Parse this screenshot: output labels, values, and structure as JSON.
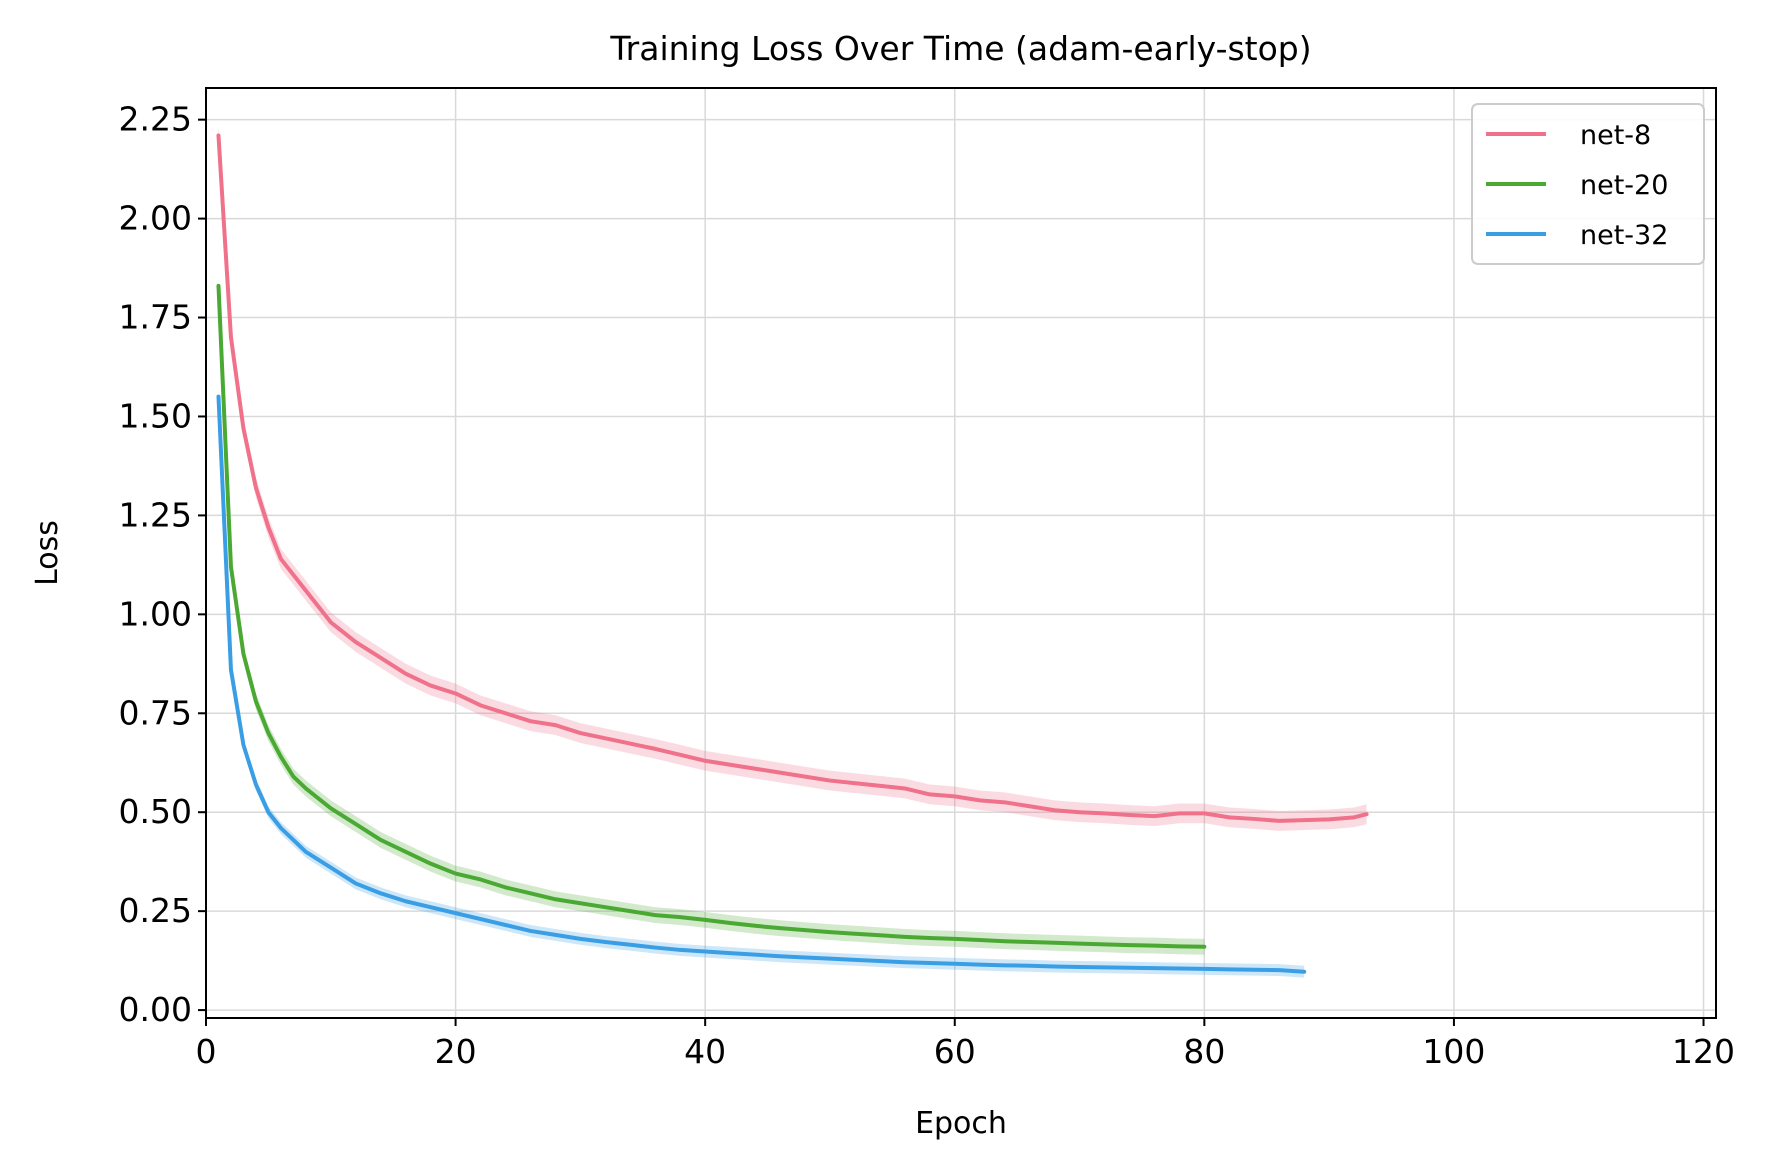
{
  "chart_data": {
    "type": "line",
    "title": "Training Loss Over Time (adam-early-stop)",
    "xlabel": "Epoch",
    "ylabel": "Loss",
    "xlim": [
      0,
      121
    ],
    "ylim": [
      -0.02,
      2.33
    ],
    "xticks": [
      0,
      20,
      40,
      60,
      80,
      100,
      120
    ],
    "yticks": [
      0.0,
      0.25,
      0.5,
      0.75,
      1.0,
      1.25,
      1.5,
      1.75,
      2.0,
      2.25
    ],
    "xtick_labels": [
      "0",
      "20",
      "40",
      "60",
      "80",
      "100",
      "120"
    ],
    "ytick_labels": [
      "0.00",
      "0.25",
      "0.50",
      "0.75",
      "1.00",
      "1.25",
      "1.50",
      "1.75",
      "2.00",
      "2.25"
    ],
    "grid": true,
    "legend_position": "top-right",
    "series": [
      {
        "name": "net-8",
        "color": "#f0718a",
        "x": [
          1,
          2,
          3,
          4,
          5,
          6,
          8,
          10,
          12,
          14,
          16,
          18,
          20,
          22,
          24,
          26,
          28,
          30,
          33,
          36,
          38,
          40,
          42,
          45,
          48,
          50,
          53,
          56,
          58,
          60,
          62,
          64,
          66,
          68,
          70,
          72,
          74,
          76,
          78,
          80,
          82,
          84,
          86,
          88,
          90,
          92,
          93
        ],
        "y": [
          2.21,
          1.7,
          1.47,
          1.32,
          1.22,
          1.14,
          1.06,
          0.98,
          0.93,
          0.89,
          0.85,
          0.82,
          0.8,
          0.77,
          0.75,
          0.73,
          0.72,
          0.7,
          0.68,
          0.66,
          0.645,
          0.63,
          0.62,
          0.605,
          0.59,
          0.58,
          0.57,
          0.56,
          0.545,
          0.54,
          0.53,
          0.525,
          0.515,
          0.505,
          0.5,
          0.497,
          0.493,
          0.49,
          0.497,
          0.497,
          0.487,
          0.483,
          0.478,
          0.48,
          0.482,
          0.487,
          0.495
        ],
        "band": 0.025
      },
      {
        "name": "net-20",
        "color": "#4aa932",
        "x": [
          1,
          2,
          3,
          4,
          5,
          6,
          7,
          8,
          10,
          12,
          14,
          16,
          18,
          20,
          22,
          24,
          26,
          28,
          30,
          32,
          34,
          36,
          38,
          40,
          42,
          44,
          46,
          48,
          50,
          52,
          54,
          56,
          58,
          60,
          62,
          64,
          66,
          68,
          70,
          72,
          74,
          76,
          78,
          80
        ],
        "y": [
          1.83,
          1.12,
          0.9,
          0.78,
          0.7,
          0.64,
          0.59,
          0.56,
          0.51,
          0.47,
          0.43,
          0.4,
          0.37,
          0.345,
          0.33,
          0.31,
          0.295,
          0.28,
          0.27,
          0.26,
          0.25,
          0.24,
          0.235,
          0.228,
          0.22,
          0.213,
          0.207,
          0.202,
          0.197,
          0.193,
          0.189,
          0.185,
          0.182,
          0.18,
          0.177,
          0.174,
          0.172,
          0.17,
          0.168,
          0.166,
          0.164,
          0.163,
          0.161,
          0.16
        ],
        "band": 0.02
      },
      {
        "name": "net-32",
        "color": "#3a9ee5",
        "x": [
          1,
          2,
          3,
          4,
          5,
          6,
          7,
          8,
          10,
          12,
          14,
          16,
          18,
          20,
          22,
          24,
          26,
          28,
          30,
          32,
          34,
          36,
          38,
          40,
          42,
          44,
          46,
          48,
          50,
          52,
          54,
          56,
          58,
          60,
          62,
          64,
          66,
          68,
          70,
          72,
          74,
          76,
          78,
          80,
          82,
          84,
          86,
          88
        ],
        "y": [
          1.55,
          0.86,
          0.67,
          0.57,
          0.5,
          0.46,
          0.43,
          0.4,
          0.36,
          0.32,
          0.295,
          0.275,
          0.26,
          0.245,
          0.23,
          0.215,
          0.2,
          0.19,
          0.18,
          0.172,
          0.165,
          0.158,
          0.152,
          0.148,
          0.144,
          0.14,
          0.136,
          0.133,
          0.13,
          0.127,
          0.124,
          0.121,
          0.119,
          0.117,
          0.115,
          0.113,
          0.112,
          0.11,
          0.109,
          0.108,
          0.107,
          0.106,
          0.105,
          0.104,
          0.103,
          0.102,
          0.101,
          0.097
        ],
        "band": 0.015
      }
    ]
  }
}
